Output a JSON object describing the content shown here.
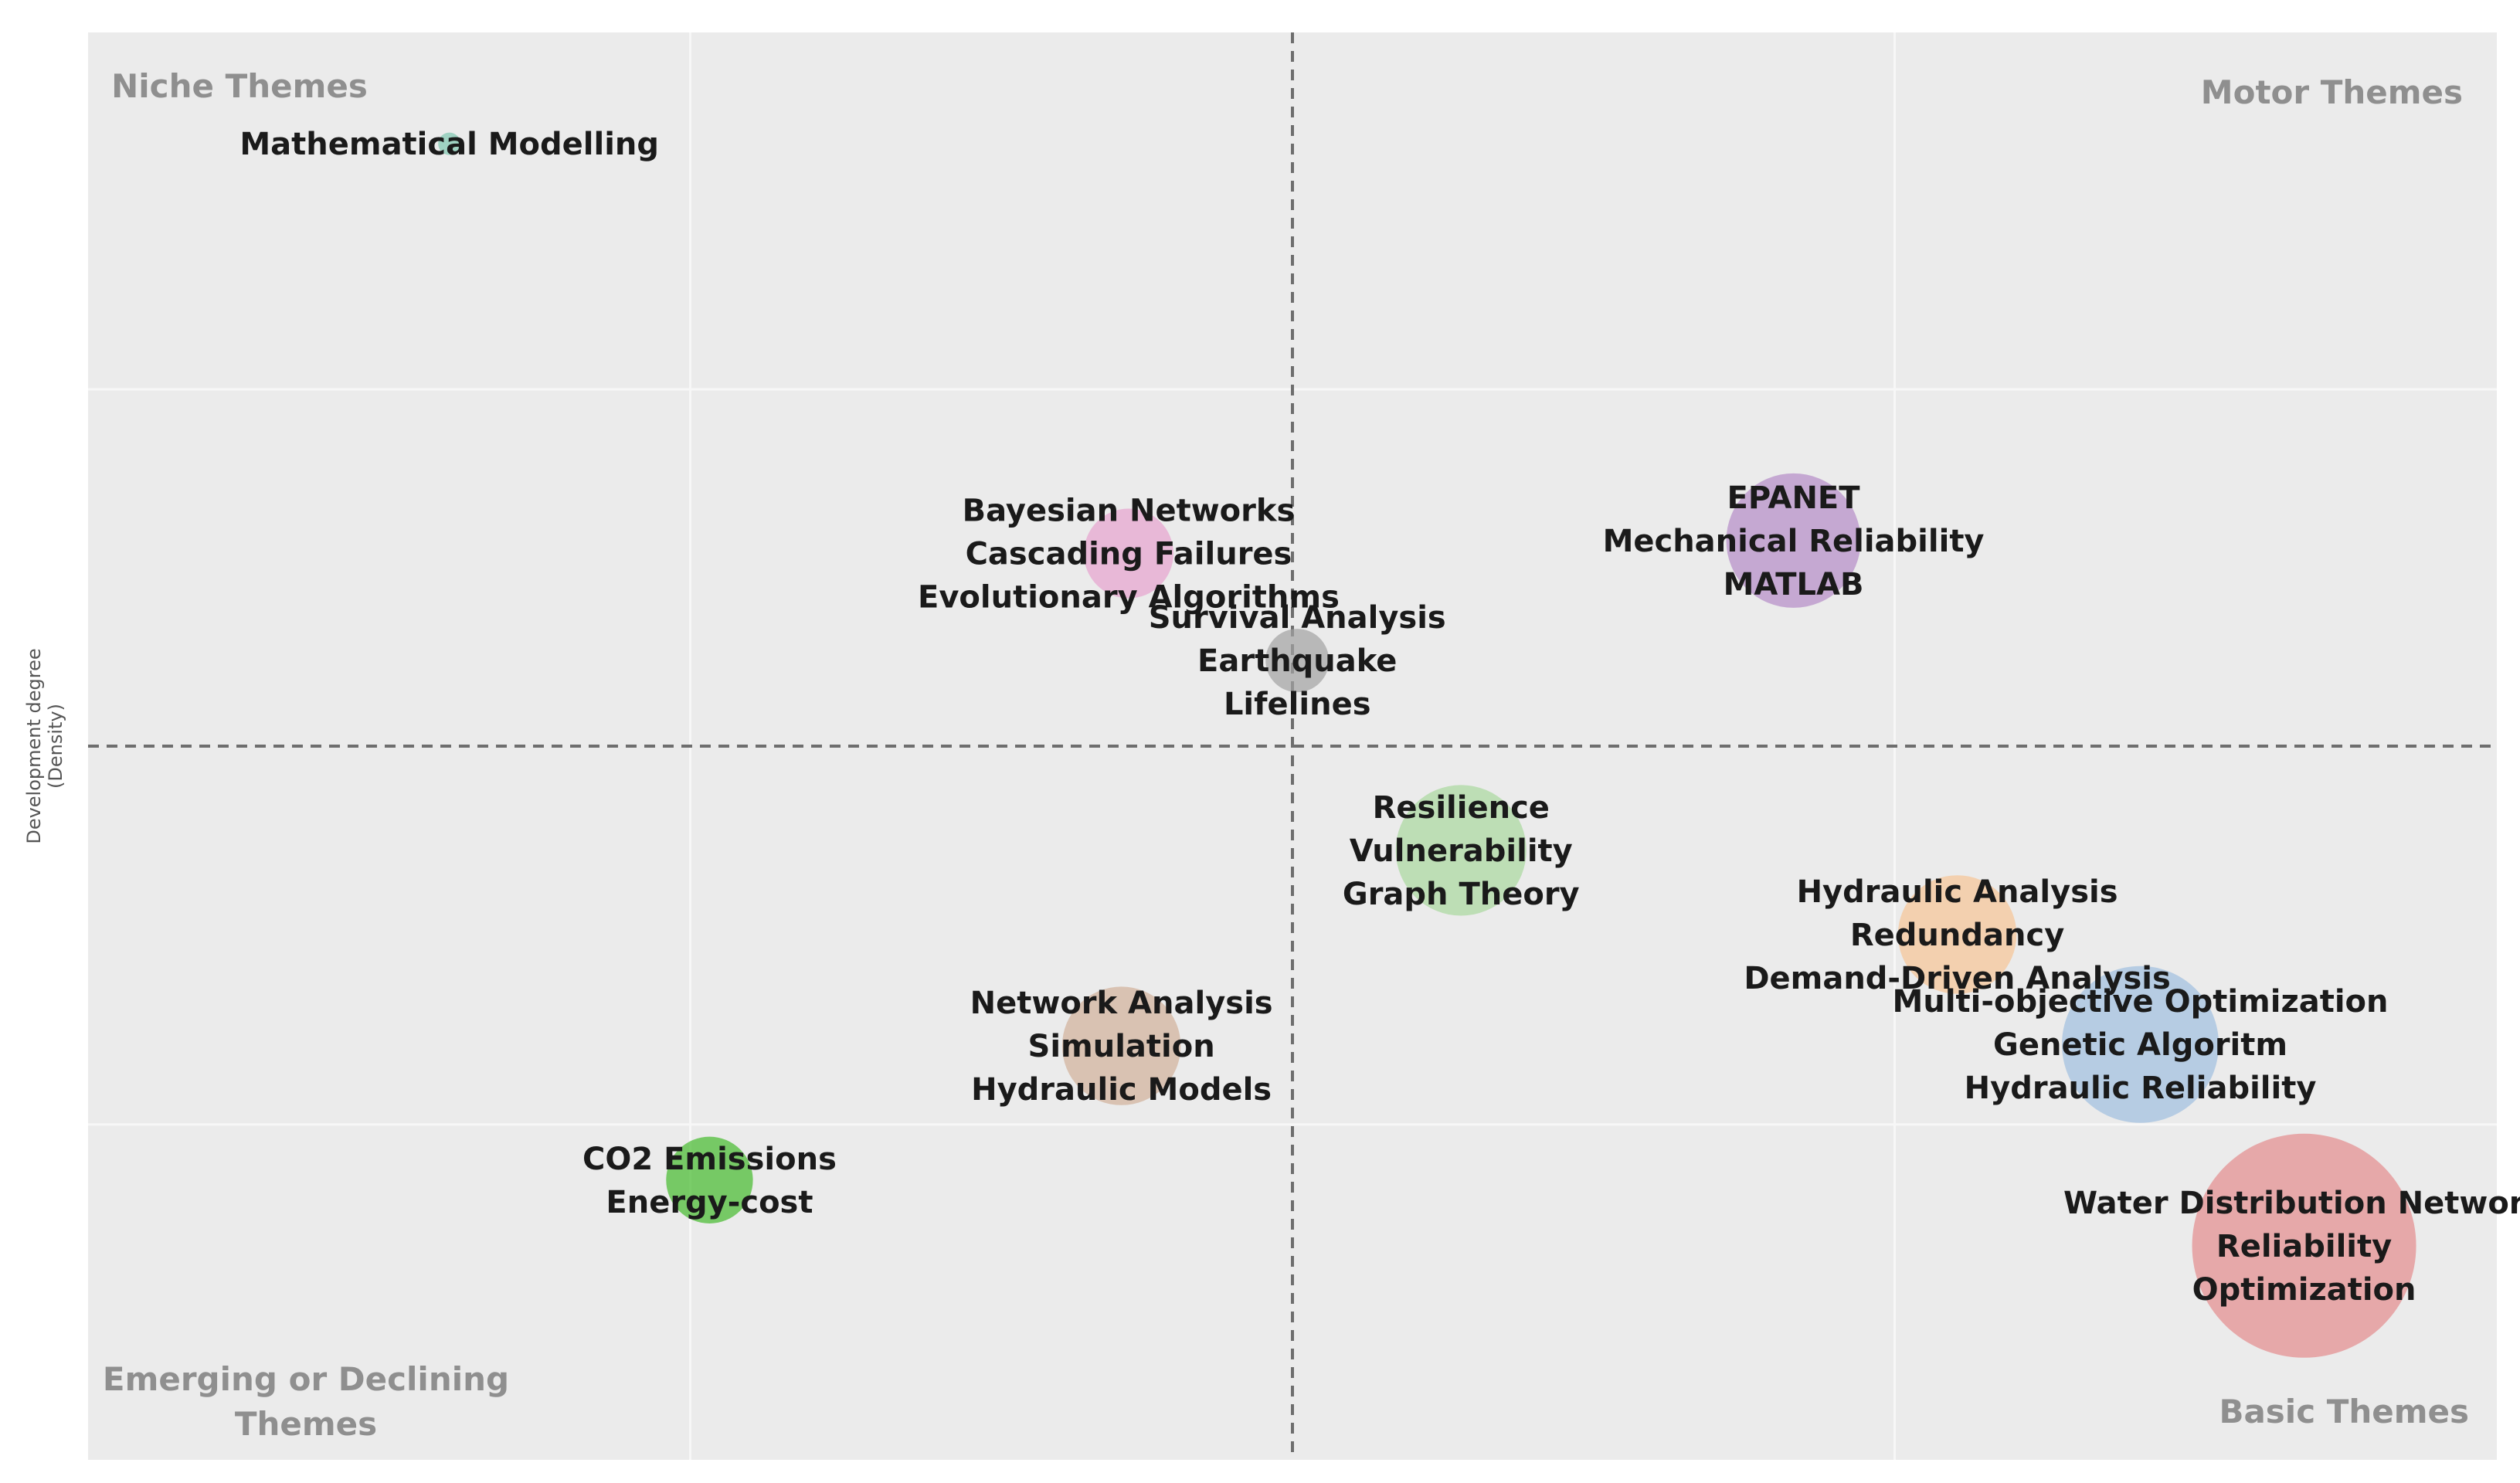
{
  "chart_data": {
    "type": "scatter",
    "variant": "bubble",
    "ylabel_lines": [
      "Development degree",
      "(Density)"
    ],
    "xlim": [
      0,
      1
    ],
    "ylim": [
      0,
      1
    ],
    "grid": true,
    "median_x": 0.5,
    "median_y": 0.5,
    "quadrants": [
      {
        "label_lines": [
          "Niche Themes"
        ],
        "position": "top-left"
      },
      {
        "label_lines": [
          "Motor Themes"
        ],
        "position": "top-right"
      },
      {
        "label_lines": [
          "Emerging or Declining",
          "Themes"
        ],
        "position": "bottom-left"
      },
      {
        "label_lines": [
          "Basic Themes"
        ],
        "position": "bottom-right"
      }
    ],
    "clusters": [
      {
        "labels": [
          "Mathematical Modelling"
        ],
        "x": 0.15,
        "y": 0.922,
        "size": 1,
        "color": "#7fc8b0"
      },
      {
        "labels": [
          "Bayesian Networks",
          "Cascading Failures",
          "Evolutionary Algorithms"
        ],
        "x": 0.432,
        "y": 0.635,
        "size": 16,
        "color": "#e7a3cf"
      },
      {
        "labels": [
          "EPANET",
          "Mechanical Reliability",
          "MATLAB"
        ],
        "x": 0.708,
        "y": 0.644,
        "size": 36,
        "color": "#b58bc8"
      },
      {
        "labels": [
          "Survival Analysis",
          "Earthquake",
          "Lifelines"
        ],
        "x": 0.502,
        "y": 0.56,
        "size": 8,
        "color": "#a3a3a3"
      },
      {
        "labels": [
          "Resilience",
          "Vulnerability",
          "Graph Theory"
        ],
        "x": 0.57,
        "y": 0.427,
        "size": 34,
        "color": "#a9d89e"
      },
      {
        "labels": [
          "Hydraulic Analysis",
          "Redundancy",
          "Demand-Driven Analysis"
        ],
        "x": 0.776,
        "y": 0.368,
        "size": 28,
        "color": "#f7c596"
      },
      {
        "labels": [
          "Multi-objective Optimization",
          "Genetic Algoritm",
          "Hydraulic Reliability"
        ],
        "x": 0.852,
        "y": 0.291,
        "size": 49,
        "color": "#9fbfe0"
      },
      {
        "labels": [
          "Network Analysis",
          "Simulation",
          "Hydraulic Models"
        ],
        "x": 0.429,
        "y": 0.29,
        "size": 28,
        "color": "#d2b09a"
      },
      {
        "labels": [
          "CO2 Emissions",
          "Energy-cost"
        ],
        "x": 0.258,
        "y": 0.196,
        "size": 15,
        "color": "#44ba2c"
      },
      {
        "labels": [
          "Water Distribution Network",
          "Reliability",
          "Optimization"
        ],
        "x": 0.92,
        "y": 0.15,
        "size": 100,
        "color": "#e48b8d"
      }
    ]
  }
}
